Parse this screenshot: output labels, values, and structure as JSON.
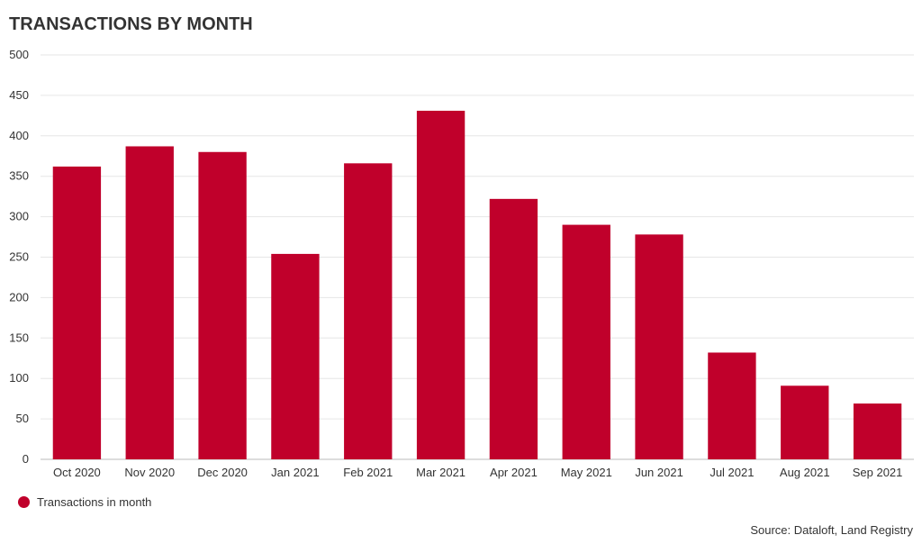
{
  "chart_data": {
    "type": "bar",
    "title": "TRANSACTIONS BY MONTH",
    "categories": [
      "Oct 2020",
      "Nov 2020",
      "Dec 2020",
      "Jan 2021",
      "Feb 2021",
      "Mar 2021",
      "Apr 2021",
      "May 2021",
      "Jun 2021",
      "Jul 2021",
      "Aug 2021",
      "Sep 2021"
    ],
    "series": [
      {
        "name": "Transactions in month",
        "values": [
          362,
          387,
          380,
          254,
          366,
          431,
          322,
          290,
          278,
          132,
          91,
          69
        ],
        "color": "#c0002b"
      }
    ],
    "ylim": [
      0,
      500
    ],
    "yticks": [
      0,
      50,
      100,
      150,
      200,
      250,
      300,
      350,
      400,
      450,
      500
    ],
    "grid": true,
    "legend_position": "bottom-left",
    "source": "Source: Dataloft, Land Registry"
  }
}
